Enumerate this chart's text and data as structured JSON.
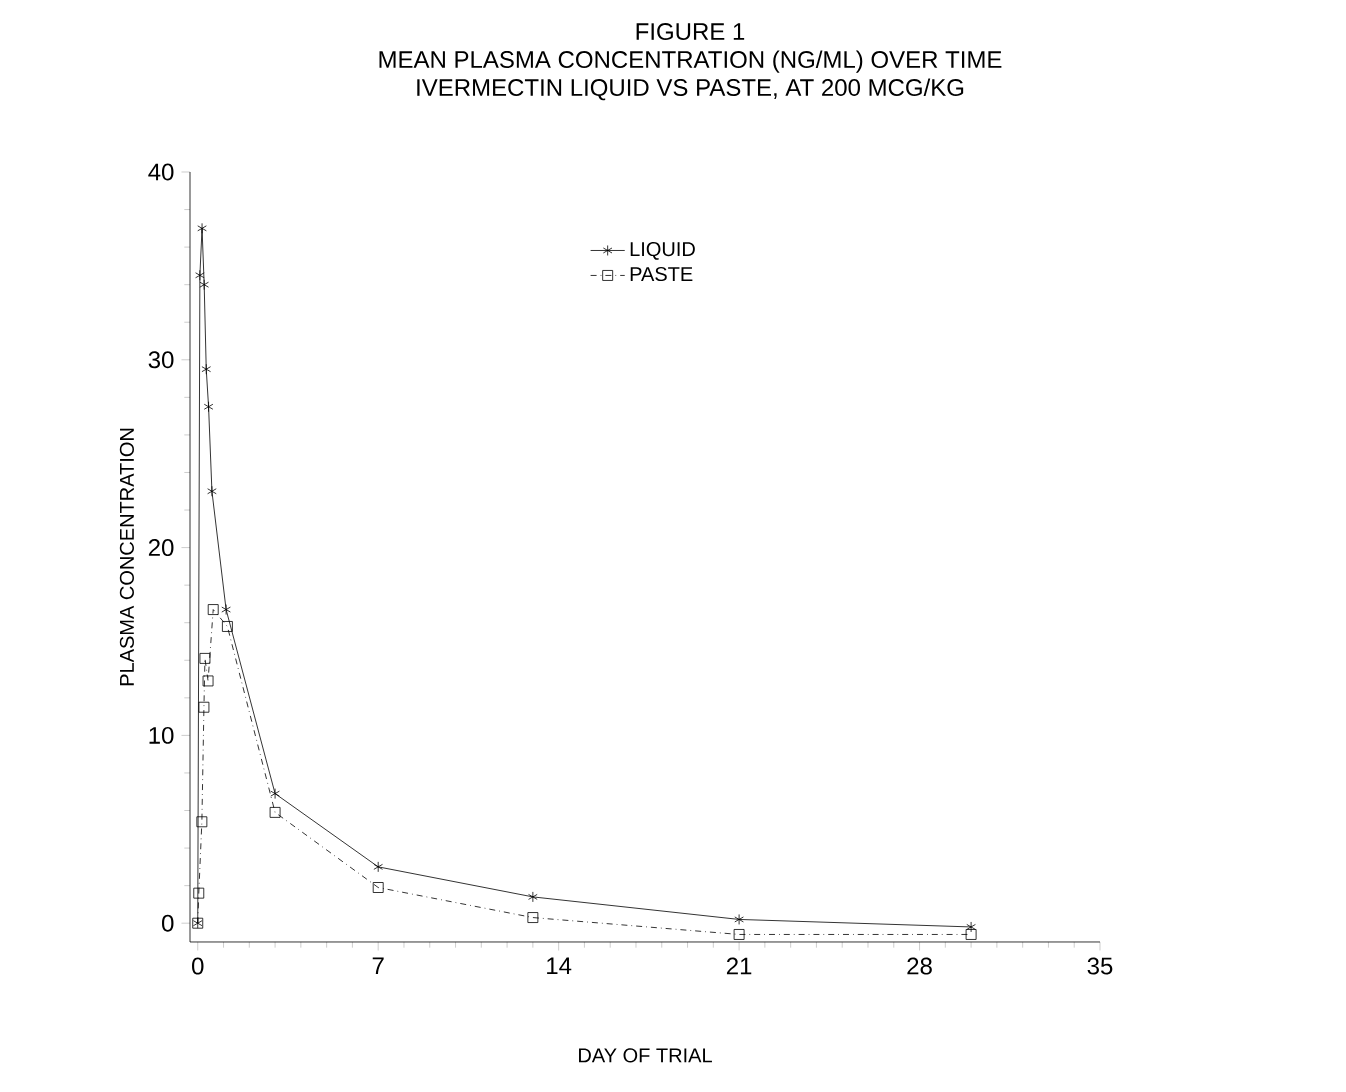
{
  "chart_data": {
    "type": "line",
    "title": "FIGURE 1",
    "subtitle": "MEAN PLASMA CONCENTRATION (NG/ML) OVER TIME",
    "annotations": [
      "IVERMECTIN LIQUID VS PASTE, AT 200 MCG/KG"
    ],
    "xlabel": "DAY OF TRIAL",
    "ylabel": "PLASMA CONCENTRATION",
    "xlim": [
      -0.3,
      35
    ],
    "xticks": [
      0,
      7,
      14,
      21,
      28,
      35
    ],
    "ylim": [
      -1,
      40
    ],
    "yticks": [
      0,
      10,
      20,
      30,
      40
    ],
    "legend": "top",
    "grid": false,
    "series": [
      {
        "name": "LIQUID",
        "color": "#000000",
        "marker": "cross",
        "line_style": "solid",
        "x": [
          0,
          0.083,
          0.167,
          0.25,
          0.33,
          0.42,
          0.55,
          1.1,
          3,
          7,
          13,
          21,
          30
        ],
        "values": [
          0,
          34.5,
          37,
          34,
          29.5,
          27.5,
          23,
          16.7,
          6.9,
          3.0,
          1.4,
          0.2,
          -0.2
        ]
      },
      {
        "name": "PASTE",
        "color": "#000000",
        "marker": "square",
        "line_style": "dotted",
        "x": [
          0,
          0.04,
          0.16,
          0.24,
          0.28,
          0.4,
          0.6,
          1.15,
          3,
          7,
          13,
          21,
          30
        ],
        "values": [
          0,
          1.6,
          5.4,
          11.5,
          14.1,
          12.9,
          16.7,
          15.8,
          5.9,
          1.9,
          0.3,
          -0.6,
          -0.6
        ]
      }
    ]
  }
}
